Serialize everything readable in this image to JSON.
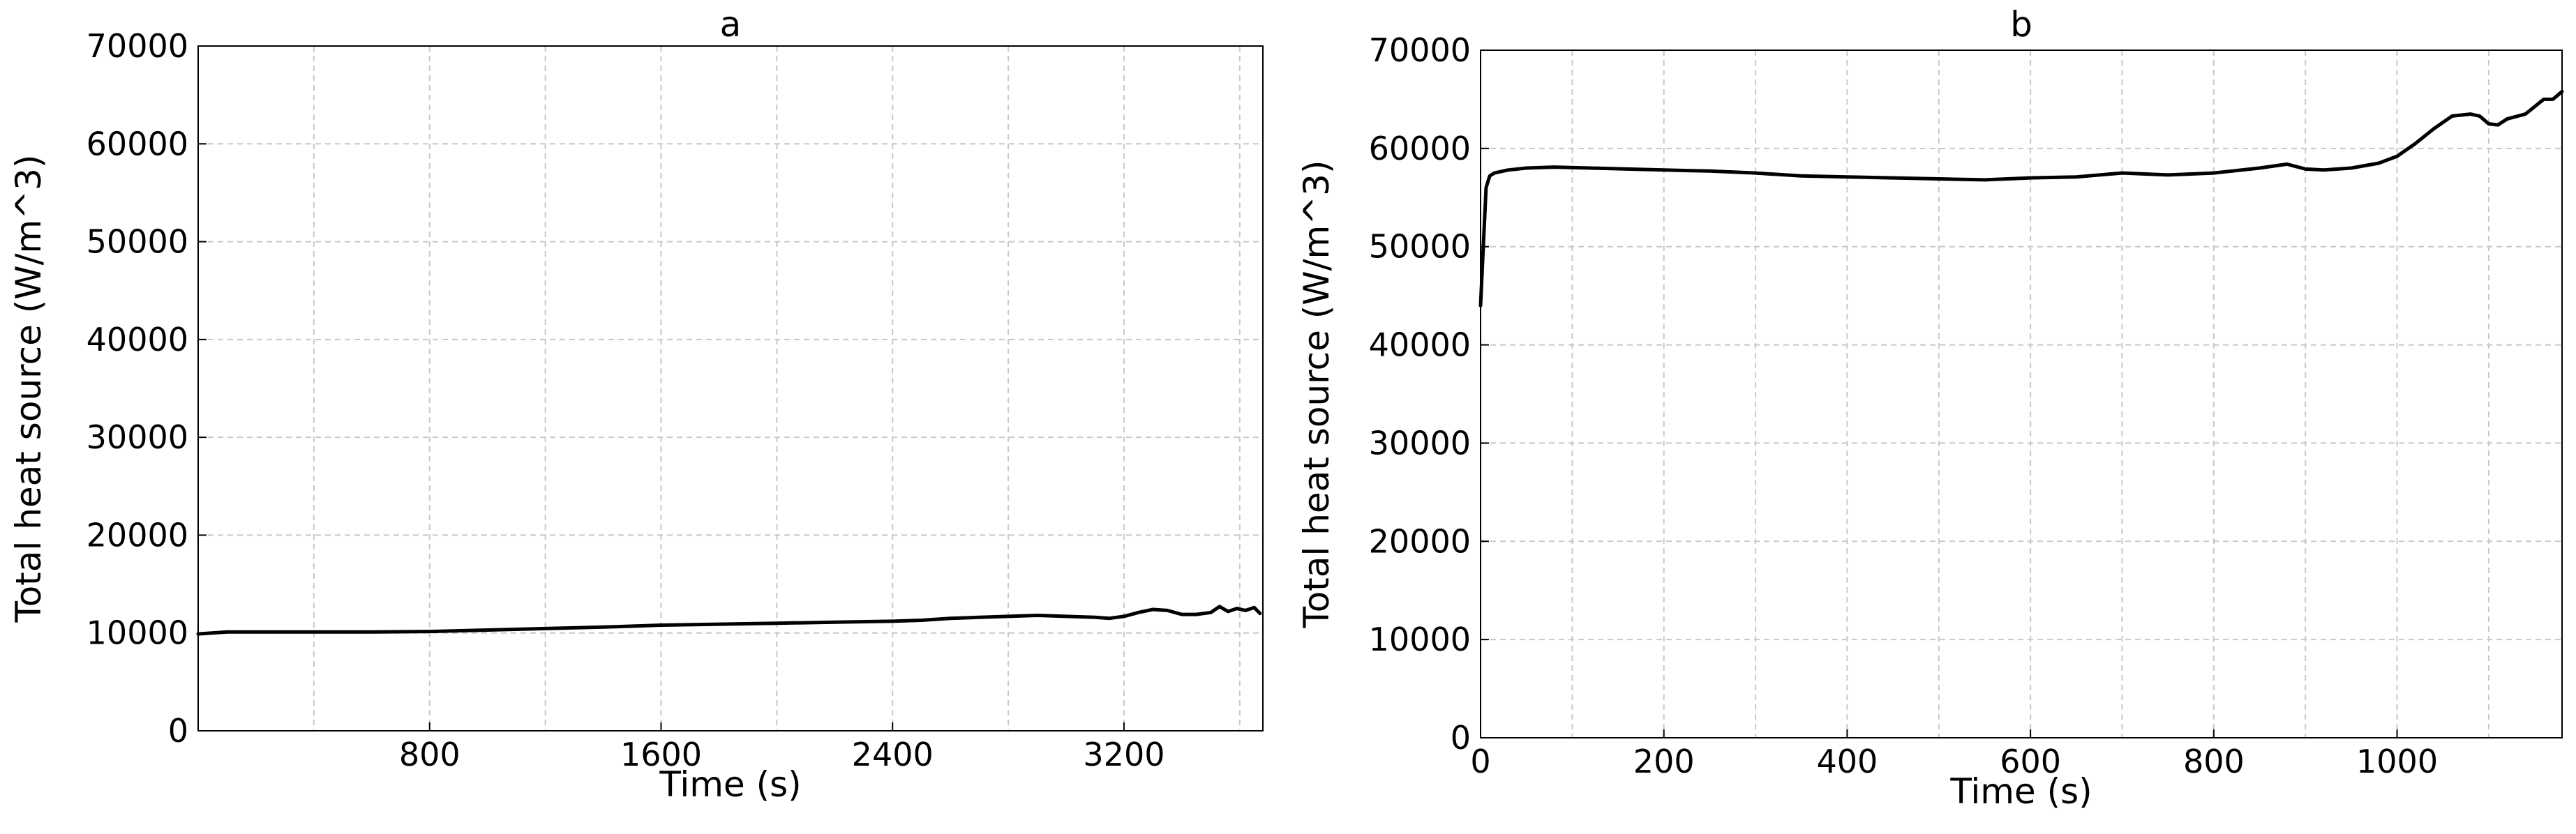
{
  "chart_data": [
    {
      "type": "line",
      "title": "a",
      "xlabel": "Time (s)",
      "ylabel": "Total heat source (W/m^3)",
      "xlim": [
        0,
        3680
      ],
      "ylim": [
        0,
        70000
      ],
      "xticks": [
        800,
        1600,
        2400,
        3200
      ],
      "xtick_labels": [
        "800",
        "1600",
        "2400",
        "3200"
      ],
      "yticks": [
        0,
        10000,
        20000,
        30000,
        40000,
        50000,
        60000,
        70000
      ],
      "ytick_labels": [
        "0",
        "10000",
        "20000",
        "30000",
        "40000",
        "50000",
        "60000",
        "70000"
      ],
      "x_minor_grid": [
        400,
        1200,
        2000,
        2800,
        3600
      ],
      "grid": true,
      "line_color": "#000000",
      "series": [
        {
          "x": [
            0,
            100,
            200,
            400,
            600,
            800,
            1000,
            1200,
            1400,
            1600,
            1800,
            2000,
            2200,
            2400,
            2500,
            2600,
            2700,
            2800,
            2900,
            3000,
            3100,
            3150,
            3200,
            3250,
            3300,
            3350,
            3400,
            3450,
            3500,
            3530,
            3560,
            3590,
            3620,
            3650,
            3670
          ],
          "y": [
            9900,
            10100,
            10100,
            10100,
            10100,
            10150,
            10300,
            10450,
            10600,
            10800,
            10900,
            11000,
            11100,
            11200,
            11300,
            11500,
            11600,
            11700,
            11800,
            11700,
            11600,
            11500,
            11700,
            12100,
            12400,
            12300,
            11900,
            11900,
            12100,
            12700,
            12200,
            12500,
            12300,
            12600,
            12000
          ]
        }
      ]
    },
    {
      "type": "line",
      "title": "b",
      "xlabel": "Time (s)",
      "ylabel": "Total heat source (W/m^3)",
      "xlim": [
        0,
        1180
      ],
      "ylim": [
        0,
        70000
      ],
      "xticks": [
        0,
        200,
        400,
        600,
        800,
        1000
      ],
      "xtick_labels": [
        "0",
        "200",
        "400",
        "600",
        "800",
        "1000"
      ],
      "yticks": [
        0,
        10000,
        20000,
        30000,
        40000,
        50000,
        60000,
        70000
      ],
      "ytick_labels": [
        "0",
        "10000",
        "20000",
        "30000",
        "40000",
        "50000",
        "60000",
        "70000"
      ],
      "x_minor_grid": [
        100,
        300,
        500,
        700,
        900,
        1100
      ],
      "grid": true,
      "line_color": "#000000",
      "series": [
        {
          "x": [
            0,
            3,
            6,
            10,
            15,
            20,
            30,
            50,
            80,
            120,
            160,
            200,
            250,
            300,
            350,
            400,
            450,
            500,
            550,
            600,
            650,
            700,
            750,
            800,
            850,
            880,
            900,
            920,
            950,
            980,
            1000,
            1020,
            1040,
            1060,
            1080,
            1090,
            1100,
            1110,
            1120,
            1140,
            1160,
            1170,
            1180
          ],
          "y": [
            44000,
            50000,
            56000,
            57200,
            57500,
            57600,
            57800,
            58000,
            58100,
            58000,
            57900,
            57800,
            57700,
            57500,
            57200,
            57100,
            57000,
            56900,
            56800,
            57000,
            57100,
            57500,
            57300,
            57500,
            58000,
            58400,
            57900,
            57800,
            58000,
            58500,
            59200,
            60500,
            62000,
            63300,
            63500,
            63300,
            62500,
            62400,
            63000,
            63500,
            65000,
            65000,
            65800
          ]
        }
      ]
    }
  ]
}
